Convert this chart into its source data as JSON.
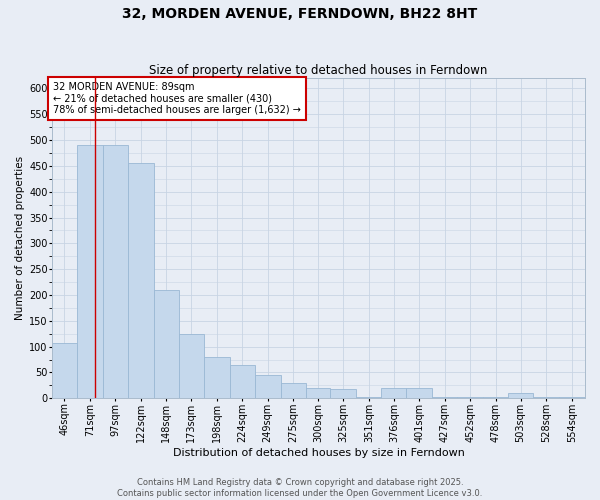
{
  "title": "32, MORDEN AVENUE, FERNDOWN, BH22 8HT",
  "subtitle": "Size of property relative to detached houses in Ferndown",
  "xlabel": "Distribution of detached houses by size in Ferndown",
  "ylabel": "Number of detached properties",
  "footer1": "Contains HM Land Registry data © Crown copyright and database right 2025.",
  "footer2": "Contains public sector information licensed under the Open Government Licence v3.0.",
  "bins": [
    46,
    71,
    97,
    122,
    148,
    173,
    198,
    224,
    249,
    275,
    300,
    325,
    351,
    376,
    401,
    427,
    452,
    478,
    503,
    528,
    554
  ],
  "bin_labels": [
    "46sqm",
    "71sqm",
    "97sqm",
    "122sqm",
    "148sqm",
    "173sqm",
    "198sqm",
    "224sqm",
    "249sqm",
    "275sqm",
    "300sqm",
    "325sqm",
    "351sqm",
    "376sqm",
    "401sqm",
    "427sqm",
    "452sqm",
    "478sqm",
    "503sqm",
    "528sqm",
    "554sqm"
  ],
  "values": [
    107,
    490,
    490,
    455,
    210,
    125,
    80,
    65,
    45,
    30,
    20,
    18,
    2,
    20,
    20,
    2,
    2,
    2,
    10,
    2,
    2
  ],
  "bar_color": "#c5d8ec",
  "bar_edge_color": "#9ab8d4",
  "bar_edge_width": 0.6,
  "grid_color": "#c8d4e4",
  "background_color": "#e8edf5",
  "axes_background_color": "#e8edf5",
  "red_line_x": 89,
  "red_line_color": "#cc0000",
  "annotation_text": "32 MORDEN AVENUE: 89sqm\n← 21% of detached houses are smaller (430)\n78% of semi-detached houses are larger (1,632) →",
  "annotation_box_facecolor": "#ffffff",
  "annotation_box_edge_color": "#cc0000",
  "annotation_fontsize": 7,
  "ylim": [
    0,
    620
  ],
  "yticks": [
    0,
    50,
    100,
    150,
    200,
    250,
    300,
    350,
    400,
    450,
    500,
    550,
    600
  ],
  "title_fontsize": 10,
  "subtitle_fontsize": 8.5,
  "xlabel_fontsize": 8,
  "ylabel_fontsize": 7.5,
  "tick_fontsize": 7,
  "footer_fontsize": 6
}
